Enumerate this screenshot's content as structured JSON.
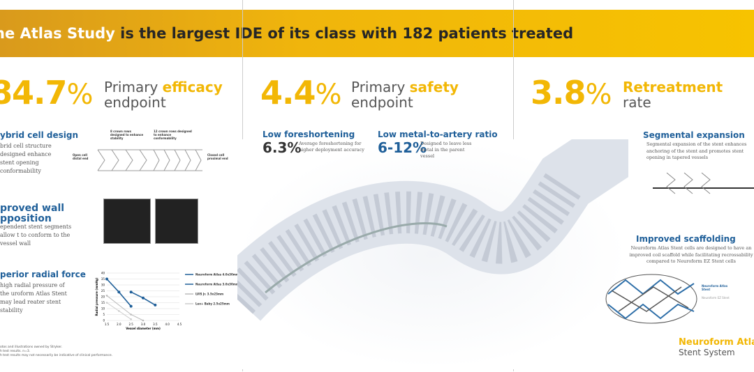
{
  "banner": {
    "title_highlight": "he Atlas Study",
    "title_rest": " is the largest IDE of its class with 182 patients treated"
  },
  "stats": [
    {
      "value": "84.7",
      "unit": "%",
      "label_pre": "Primary ",
      "label_accent": "efficacy",
      "label_line2": "endpoint"
    },
    {
      "value": "4.4",
      "unit": "%",
      "label_pre": "Primary ",
      "label_accent": "safety",
      "label_line2": "endpoint"
    },
    {
      "value": "3.8",
      "unit": "%",
      "label_pre": "",
      "label_accent": "Retreatment",
      "label_line2": "rate"
    }
  ],
  "left": {
    "hybrid": {
      "title": "ybrid cell design",
      "text": "brid cell structure designed enhance stent opening conformability"
    },
    "hybrid_callouts": [
      "8 crown rows designed to enhance stability",
      "12 crown rows designed to enhance conformability",
      "Open cell distal end",
      "Closed cell proximal end"
    ],
    "wall": {
      "title": "proved wall pposition",
      "text": "ependent stent segments allow t to conform to the vessel wall"
    },
    "radial": {
      "title": "perior radial force",
      "text": "high radial pressure of the uroform Atlas Stent may lead reater stent stability"
    },
    "footnotes": [
      "otos and illustrations owned by Stryker.",
      "h test results. n=3.",
      "h test results may not necessarily be indicative of clinical performance."
    ]
  },
  "middle": {
    "foreshortening": {
      "title": "Low foreshortening",
      "value": "6.3%",
      "text": "Average foreshortening for higher deployment accuracy"
    },
    "metal": {
      "title": "Low metal-to-artery ratio",
      "value": "6-12%",
      "text": "Designed to leave less metal in the parent vessel"
    }
  },
  "right": {
    "segmental": {
      "title": "Segmental expansion",
      "text": "Segmental expansion of the stent enhances anchoring of the stent and promotes stent opening in tapered vessels"
    },
    "scaffold": {
      "title": "Improved scaffolding",
      "text": "Neuroform Atlas Stent cells are designed to have an improved coil scaffold while facilitating recrossability compared to Neuroform EZ Stent cells"
    },
    "legend": [
      "Neuroform Atlas Stent",
      "Neuroform EZ Stent"
    ],
    "brand": "Neuroform Atlas",
    "brand_sub": "Stent System"
  },
  "colors": {
    "gold": "#f2b705",
    "blue": "#1f5f99",
    "grey": "#bbbbbb"
  },
  "chart_data": {
    "type": "line",
    "xlabel": "Vessel diameter (mm)",
    "ylabel": "Radial pressure (mmHg)",
    "xlim": [
      1.5,
      4.5
    ],
    "ylim": [
      0,
      40
    ],
    "xticks": [
      "1.5",
      "2.0",
      "2.5",
      "3.0",
      "3.5",
      "4.0",
      "4.5"
    ],
    "yticks": [
      "0",
      "5",
      "10",
      "15",
      "20",
      "25",
      "30",
      "35",
      "40"
    ],
    "series": [
      {
        "name": "Neuroform Atlas 4.0x30mm",
        "color": "#1f5f99",
        "x": [
          1.5,
          2.0,
          2.5
        ],
        "y": [
          35,
          24,
          12
        ]
      },
      {
        "name": "Neuroform Atlas 3.0x30mm",
        "color": "#1f5f99",
        "x": [
          2.5,
          3.0,
          3.5
        ],
        "y": [
          24,
          19,
          13
        ]
      },
      {
        "name": "LVIS Jr. 3.5x23mm",
        "color": "#bbbbbb",
        "x": [
          1.5,
          2.5,
          3.0
        ],
        "y": [
          21,
          5,
          0
        ]
      },
      {
        "name": "Leo+ Baby 2.5x25mm",
        "color": "#cccccc",
        "x": [
          1.5,
          2.0,
          2.5
        ],
        "y": [
          15,
          8,
          1
        ]
      }
    ]
  }
}
